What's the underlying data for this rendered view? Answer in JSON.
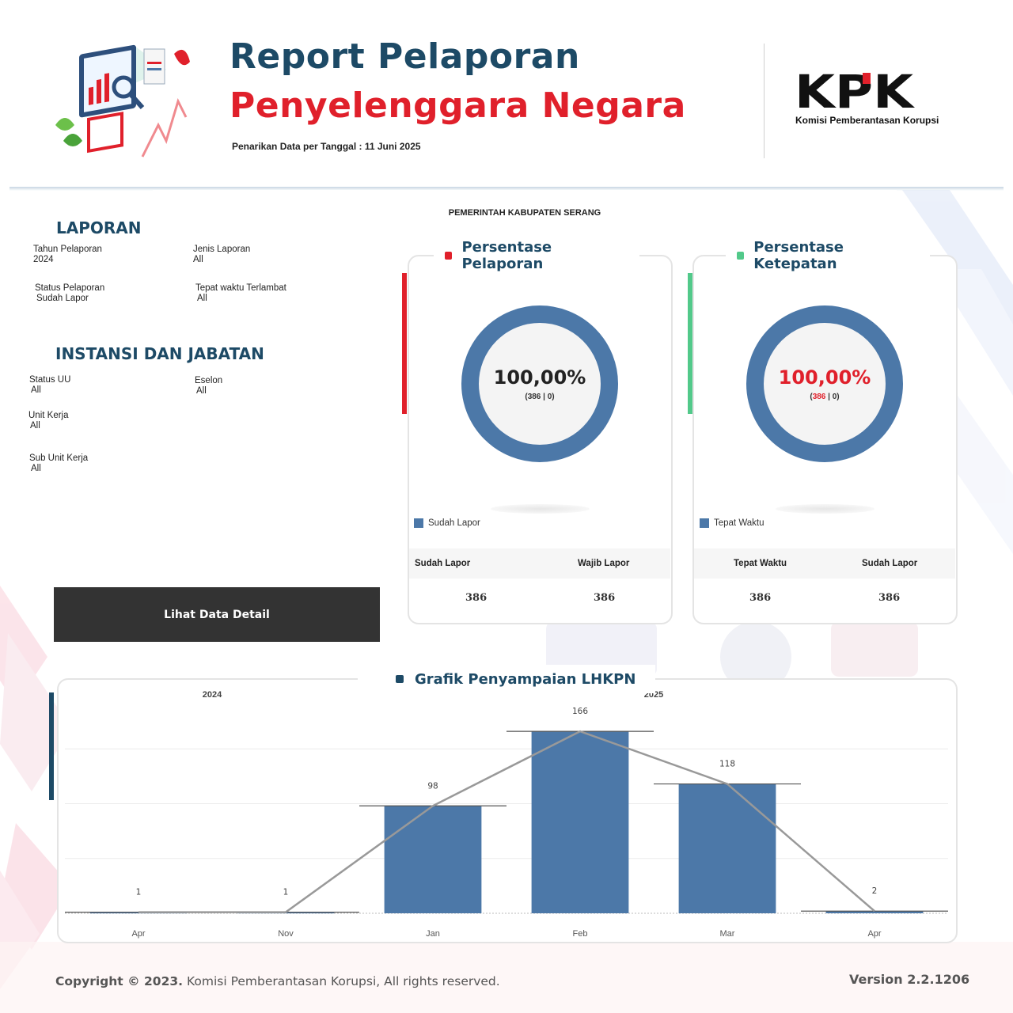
{
  "header": {
    "title_line1": "Report Pelaporan",
    "title_line2": "Penyelenggara Negara",
    "pull_date": "Penarikan Data per Tanggal : 11 Juni 2025",
    "logo_text": "KPK",
    "logo_subtitle": "Komisi Pemberantasan Korupsi"
  },
  "org_name": "PEMERINTAH KABUPATEN SERANG",
  "filters": {
    "laporan_heading": "LAPORAN",
    "tahun_label": "Tahun Pelaporan",
    "tahun_value": "2024",
    "jenis_label": "Jenis Laporan",
    "jenis_value": "All",
    "status_label": "Status Pelaporan",
    "status_value": "Sudah Lapor",
    "tepat_label": "Tepat waktu Terlambat",
    "tepat_value": "All",
    "instansi_heading": "INSTANSI DAN JABATAN",
    "status_uu_label": "Status UU",
    "status_uu_value": "All",
    "eselon_label": "Eselon",
    "eselon_value": "All",
    "unit_label": "Unit Kerja",
    "unit_value": "All",
    "sub_unit_label": "Sub Unit Kerja",
    "sub_unit_value": "All"
  },
  "detail_button": "Lihat Data Detail",
  "pelaporan_card": {
    "title": "Persentase Pelaporan",
    "percent": "100,00%",
    "fraction": 1.0,
    "sub_a": "386",
    "sub_sep": " | ",
    "sub_b": "0",
    "legend": "Sudah Lapor",
    "col1_label": "Sudah Lapor",
    "col2_label": "Wajib Lapor",
    "col1_value": "386",
    "col2_value": "386"
  },
  "ketepatan_card": {
    "title": "Persentase Ketepatan",
    "percent": "100,00%",
    "fraction": 1.0,
    "sub_a": "386",
    "sub_sep": " | ",
    "sub_b": "0",
    "legend": "Tepat Waktu",
    "col1_label": "Tepat Waktu",
    "col2_label": "Sudah Lapor",
    "col1_value": "386",
    "col2_value": "386"
  },
  "chart_title": "Grafik Penyampaian LHKPN",
  "chart_data": {
    "type": "bar",
    "title": "Grafik Penyampaian LHKPN",
    "groups": [
      {
        "label": "2024",
        "categories": [
          "Apr",
          "Nov"
        ]
      },
      {
        "label": "2025",
        "categories": [
          "Jan",
          "Feb",
          "Mar",
          "Apr"
        ]
      }
    ],
    "categories": [
      "Apr",
      "Nov",
      "Jan",
      "Feb",
      "Mar",
      "Apr"
    ],
    "values": [
      1,
      1,
      98,
      166,
      118,
      2
    ],
    "overlay": "line",
    "ylim": [
      0,
      200
    ],
    "grid": true
  },
  "colors": {
    "primary_navy": "#1d4a66",
    "accent_red": "#e0202b",
    "bar_blue": "#4c78a8",
    "donut_blue": "#4c78a8",
    "accent_green": "#52c98a",
    "button_dark": "#333333"
  },
  "footer": {
    "copyright_prefix": "Copyright © 2023.",
    "copyright_rest": " Komisi Pemberantasan Korupsi, All rights reserved.",
    "version": "Version  2.2.1206"
  }
}
